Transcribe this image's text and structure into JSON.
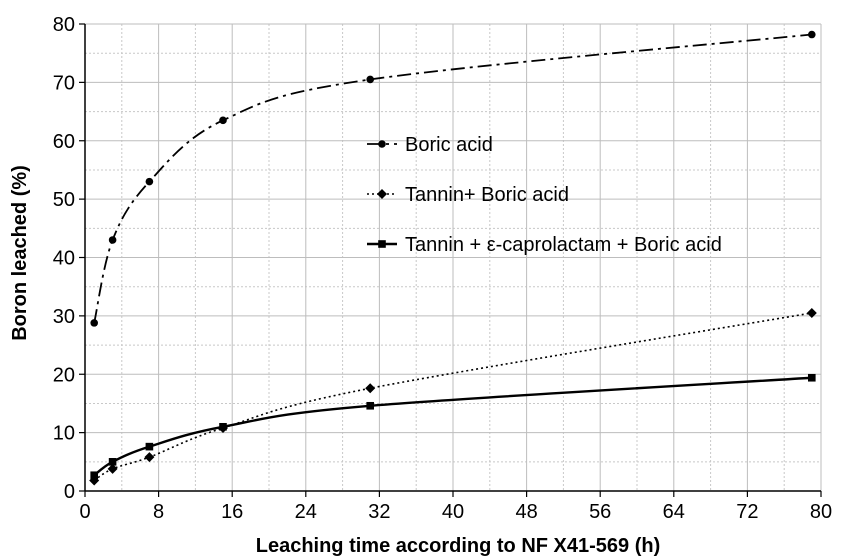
{
  "chart_data": {
    "type": "line",
    "title": "",
    "xlabel": "Leaching time according to NF X41-569 (h)",
    "ylabel": "Boron leached (%)",
    "xlim": [
      0,
      80
    ],
    "ylim": [
      0,
      80
    ],
    "xticks": [
      0,
      8,
      16,
      24,
      32,
      40,
      48,
      56,
      64,
      72,
      80
    ],
    "yticks": [
      0,
      10,
      20,
      30,
      40,
      50,
      60,
      70,
      80
    ],
    "x_minor_step": 4,
    "y_minor_step": 5,
    "grid": true,
    "legend_position": "center-right",
    "series": [
      {
        "name": "Boric acid",
        "x": [
          1,
          3,
          7,
          15,
          31,
          79
        ],
        "y": [
          28.8,
          43.0,
          53.0,
          63.5,
          70.5,
          78.2
        ],
        "line_style": "dash-dot",
        "marker": "circle",
        "color": "#000000"
      },
      {
        "name": "Tannin+ Boric acid",
        "x": [
          1,
          3,
          7,
          15,
          31,
          79
        ],
        "y": [
          1.8,
          3.8,
          5.8,
          10.8,
          17.6,
          30.5
        ],
        "line_style": "dotted",
        "marker": "diamond",
        "color": "#000000"
      },
      {
        "name": "Tannin + ε-caprolactam + Boric acid",
        "x": [
          1,
          3,
          7,
          15,
          31,
          79
        ],
        "y": [
          2.7,
          5.0,
          7.6,
          11.0,
          14.6,
          19.4
        ],
        "line_style": "solid",
        "marker": "square",
        "color": "#000000"
      }
    ]
  }
}
